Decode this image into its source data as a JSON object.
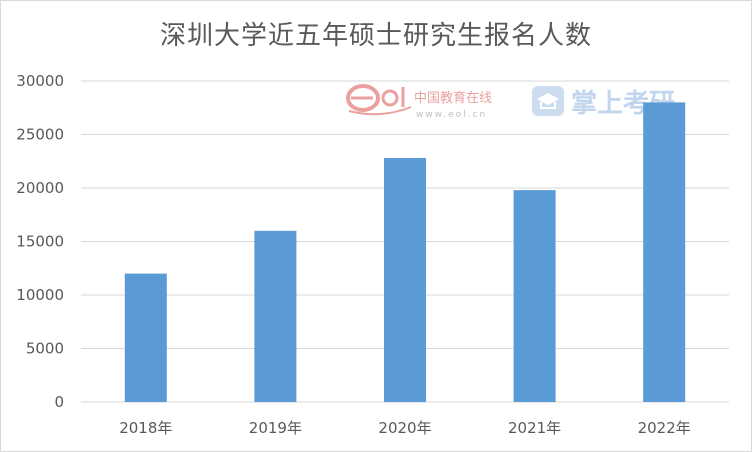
{
  "chart_data": {
    "type": "bar",
    "title": "深圳大学近五年硕士研究生报名人数",
    "xlabel": "",
    "ylabel": "",
    "categories": [
      "2018年",
      "2019年",
      "2020年",
      "2021年",
      "2022年"
    ],
    "values": [
      12000,
      16000,
      22800,
      19800,
      28000
    ],
    "ylim": [
      0,
      30000
    ],
    "yticks": [
      "0",
      "5000",
      "10000",
      "15000",
      "20000",
      "25000",
      "30000"
    ],
    "grid": true,
    "legend": "none",
    "bar_color": "#5b9bd5",
    "grid_color": "#d9d9d9"
  },
  "watermark": {
    "eol_logo_text": "eol",
    "eol_name": "中国教育在线",
    "eol_url": "www.eol.cn",
    "kaoyan_logo_text": "掌上考研"
  }
}
